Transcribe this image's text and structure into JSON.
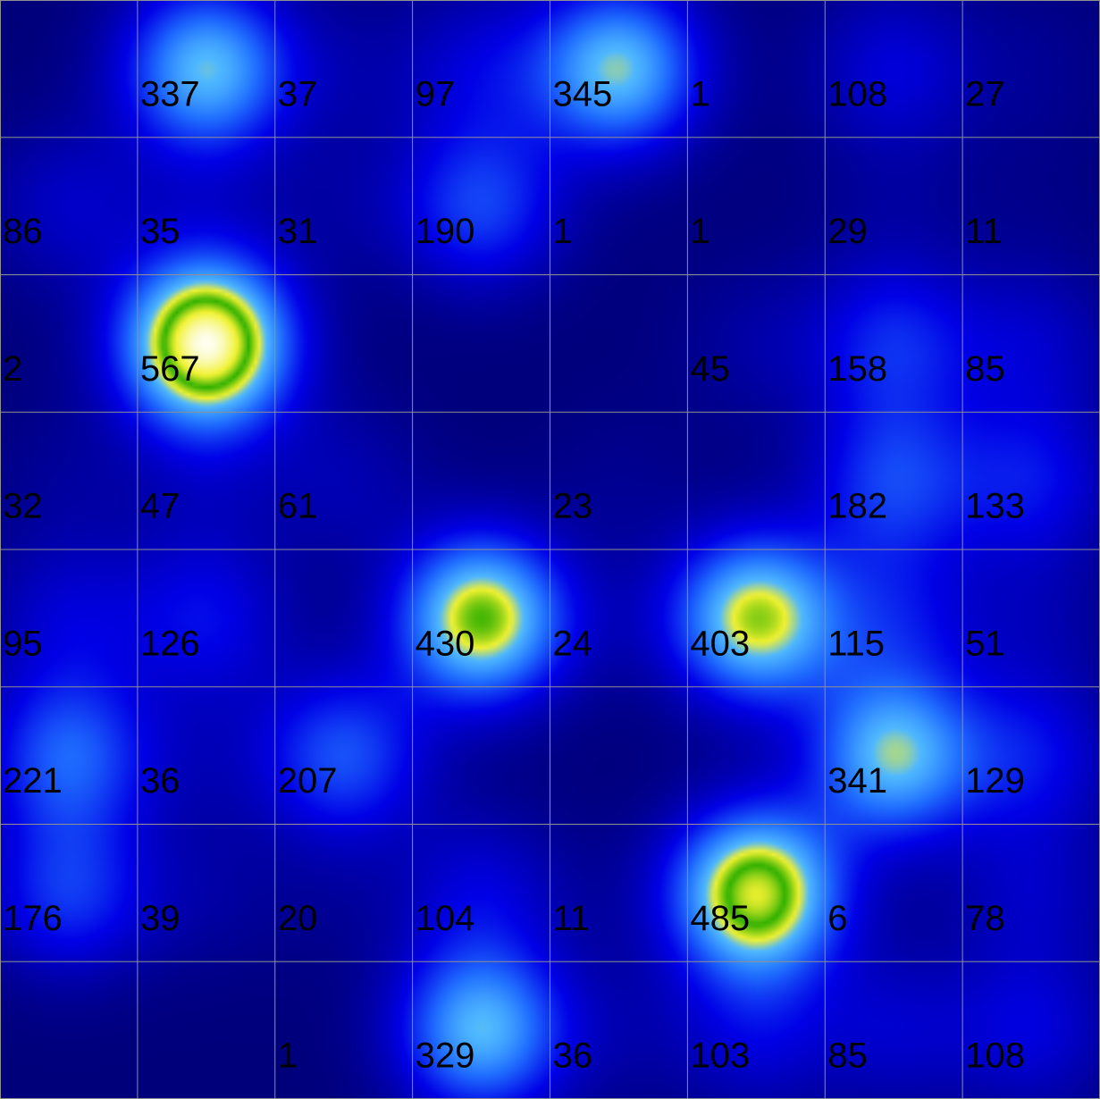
{
  "chart_data": {
    "type": "heatmap",
    "title": "",
    "xlabel": "",
    "ylabel": "",
    "grid": true,
    "legend": "none",
    "rows": 8,
    "cols": 8,
    "values": [
      [
        null,
        337,
        37,
        97,
        345,
        1,
        108,
        27
      ],
      [
        86,
        35,
        31,
        190,
        1,
        1,
        29,
        11
      ],
      [
        2,
        567,
        null,
        null,
        null,
        45,
        158,
        85
      ],
      [
        32,
        47,
        61,
        null,
        23,
        null,
        182,
        133
      ],
      [
        95,
        126,
        null,
        430,
        24,
        403,
        115,
        51
      ],
      [
        221,
        36,
        207,
        null,
        null,
        null,
        341,
        129
      ],
      [
        176,
        39,
        20,
        104,
        11,
        485,
        6,
        78
      ],
      [
        null,
        null,
        1,
        329,
        36,
        103,
        85,
        108
      ]
    ],
    "colorscale": [
      "#00007a",
      "#0000e6",
      "#1f6cff",
      "#4fb8ff",
      "#f2f230",
      "#2eb000",
      "#f2f230",
      "#ffffff"
    ],
    "grid_color": "#909090",
    "label_color": "#000000"
  }
}
